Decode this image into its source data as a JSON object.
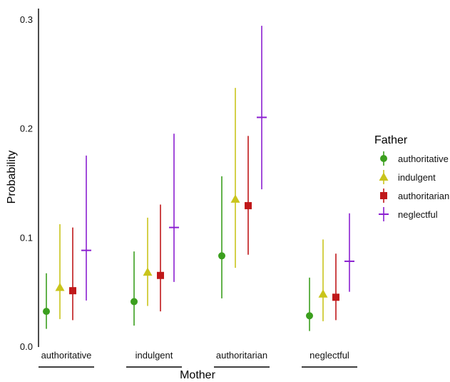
{
  "chart_data": {
    "type": "scatter",
    "subtype": "point-range (dodged)",
    "xlabel": "Mother",
    "ylabel": "Probability",
    "categories": [
      "authoritative",
      "indulgent",
      "authoritarian",
      "neglectful"
    ],
    "ylim": [
      0,
      0.3
    ],
    "yticks": [
      0.0,
      0.1,
      0.2,
      0.3
    ],
    "ytick_labels": [
      "0.0",
      "0.1",
      "0.2",
      "0.3"
    ],
    "grid": false,
    "legend": {
      "title": "Father",
      "position": "right"
    },
    "series": [
      {
        "name": "authoritative",
        "color": "#3b9f1e",
        "marker": "circle",
        "values": [
          0.032,
          0.041,
          0.083,
          0.028
        ],
        "lower": [
          0.016,
          0.019,
          0.044,
          0.014
        ],
        "upper": [
          0.067,
          0.087,
          0.156,
          0.063
        ]
      },
      {
        "name": "indulgent",
        "color": "#c9c41c",
        "marker": "triangle",
        "values": [
          0.054,
          0.068,
          0.135,
          0.048
        ],
        "lower": [
          0.025,
          0.037,
          0.072,
          0.023
        ],
        "upper": [
          0.112,
          0.118,
          0.237,
          0.098
        ]
      },
      {
        "name": "authoritarian",
        "color": "#c0181a",
        "marker": "square",
        "values": [
          0.051,
          0.065,
          0.129,
          0.045
        ],
        "lower": [
          0.024,
          0.032,
          0.084,
          0.024
        ],
        "upper": [
          0.109,
          0.13,
          0.193,
          0.085
        ]
      },
      {
        "name": "neglectful",
        "color": "#8a1fd0",
        "marker": "cross",
        "values": [
          0.088,
          0.109,
          0.21,
          0.078
        ],
        "lower": [
          0.042,
          0.059,
          0.144,
          0.05
        ],
        "upper": [
          0.175,
          0.195,
          0.294,
          0.122
        ]
      }
    ]
  }
}
